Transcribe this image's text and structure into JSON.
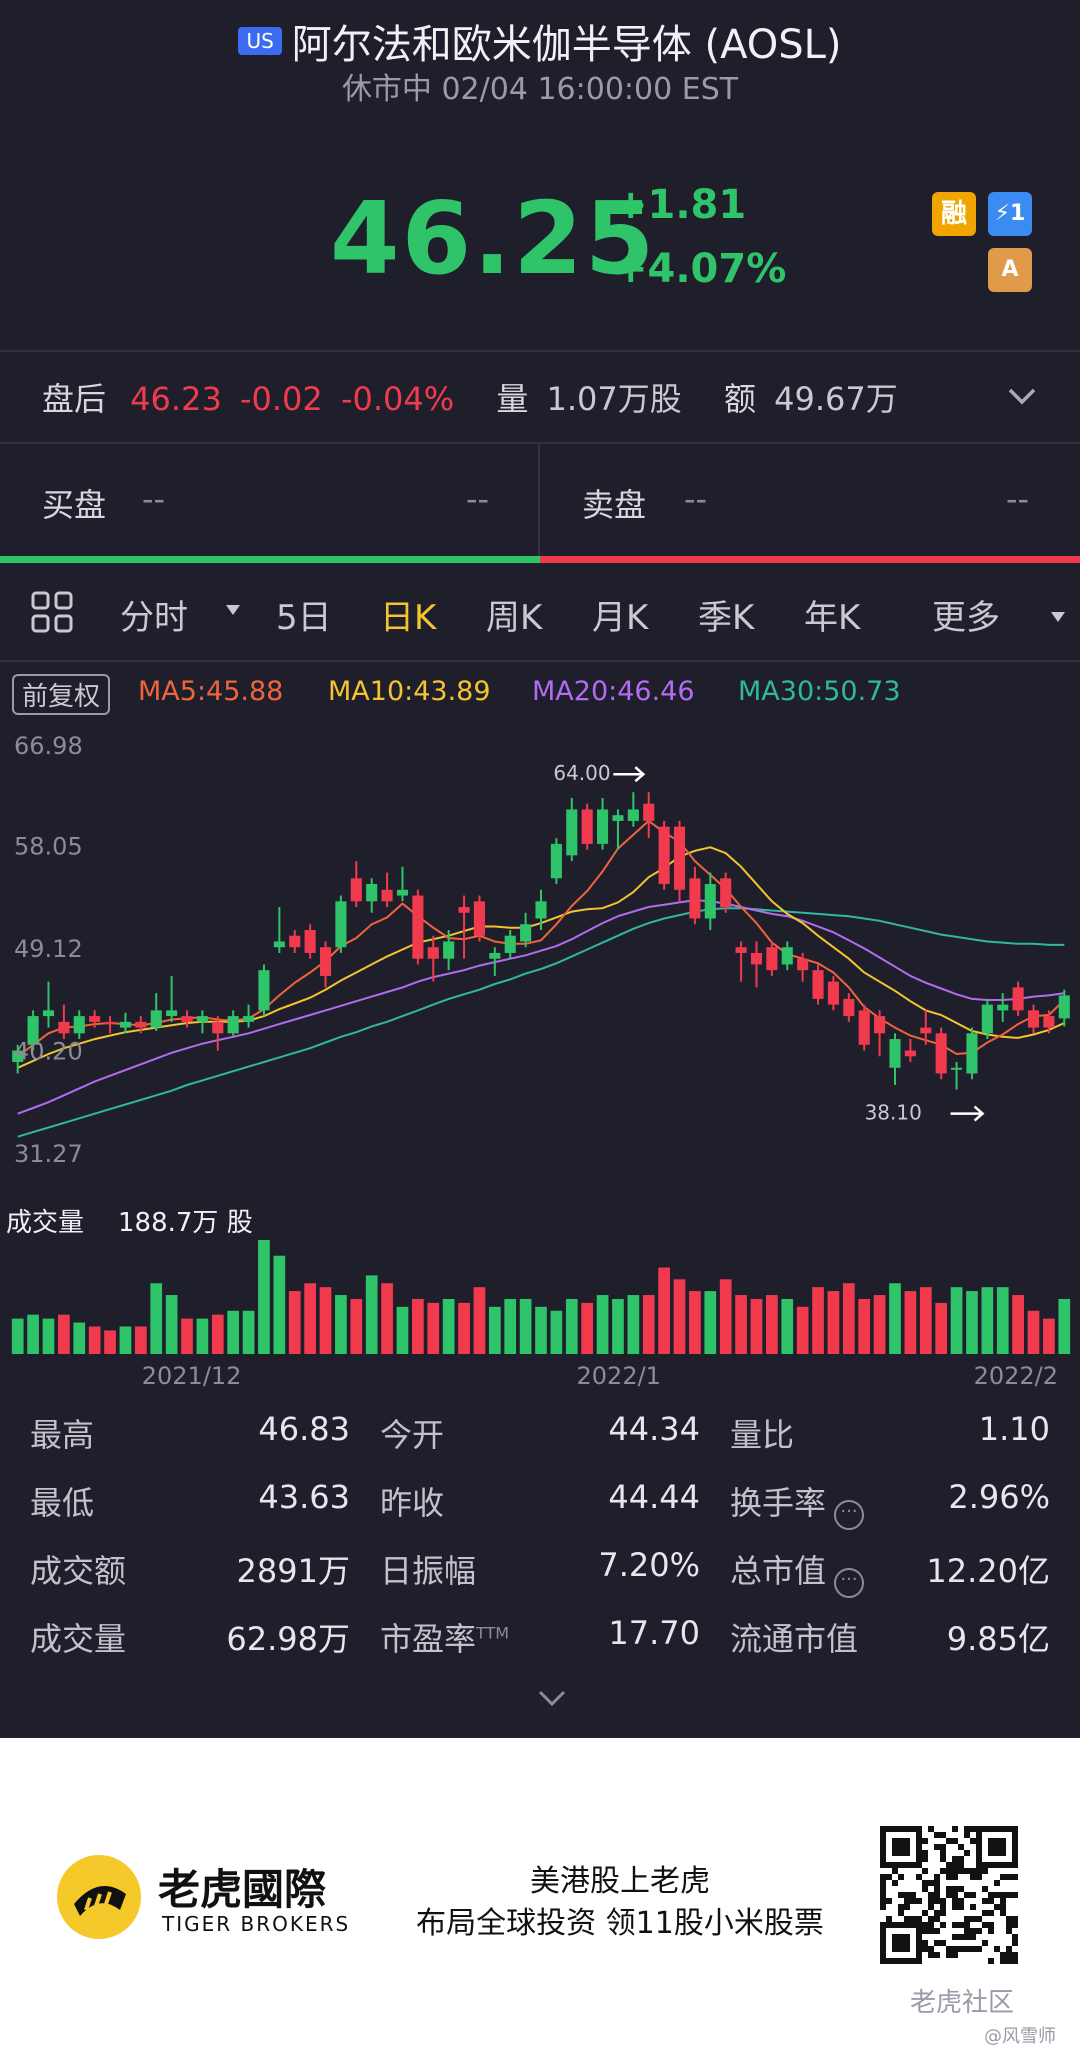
{
  "header": {
    "market_badge": "US",
    "title": "阿尔法和欧米伽半导体 (AOSL)",
    "status": "休市中 02/04 16:00:00 EST",
    "price": "46.25",
    "change": "+1.81",
    "change_pct": "+4.07%",
    "icons": [
      {
        "name": "margin-icon",
        "label": "融",
        "color": "#f0a500"
      },
      {
        "name": "lightning-icon",
        "label": "⚡1",
        "color": "#3a8cf2"
      },
      {
        "name": "stack-a-icon",
        "label": "A",
        "color": "#e09a4a"
      }
    ]
  },
  "after_hours": {
    "label": "盘后",
    "price": "46.23",
    "change": "-0.02",
    "change_pct": "-0.04%",
    "volume_label": "量",
    "volume": "1.07万股",
    "amount_label": "额",
    "amount": "49.67万"
  },
  "order_book": {
    "bid_label": "买盘",
    "bid_price": "--",
    "bid_qty": "--",
    "ask_label": "卖盘",
    "ask_price": "--",
    "ask_qty": "--"
  },
  "tabs": [
    {
      "label": "分时"
    },
    {
      "label": "5日"
    },
    {
      "label": "日K"
    },
    {
      "label": "周K"
    },
    {
      "label": "月K"
    },
    {
      "label": "季K"
    },
    {
      "label": "年K"
    },
    {
      "label": "更多"
    }
  ],
  "active_tab": "日K",
  "chart_meta": {
    "adjust_label": "前复权",
    "ma5": "MA5:45.88",
    "ma10": "MA10:43.89",
    "ma20": "MA20:46.46",
    "ma30": "MA30:50.73",
    "colors": {
      "up": "#2fc46a",
      "down": "#f23a4f",
      "ma5": "#f0643c",
      "ma10": "#f4c430",
      "ma20": "#b36bf0",
      "ma30": "#2fb8a0"
    },
    "y_ticks": [
      "66.98",
      "58.05",
      "49.12",
      "40.20",
      "31.27"
    ],
    "high_marker": "64.00",
    "low_marker": "38.10",
    "volume_label": "成交量",
    "volume_value": "188.7万 股",
    "x_ticks": [
      "2021/12",
      "2022/1",
      "2022/2"
    ]
  },
  "chart_data": {
    "type": "candlestick",
    "ylim": [
      31.27,
      66.98
    ],
    "candles": [
      [
        40.5,
        41.5,
        39.5,
        42.0,
        "up"
      ],
      [
        42.0,
        44.5,
        41.5,
        45.0,
        "up"
      ],
      [
        44.5,
        45.0,
        43.5,
        47.5,
        "up"
      ],
      [
        44.0,
        43.0,
        42.5,
        45.5,
        "down"
      ],
      [
        43.0,
        44.5,
        42.5,
        45.0,
        "up"
      ],
      [
        44.5,
        44.0,
        43.5,
        45.0,
        "down"
      ],
      [
        44.0,
        43.8,
        43.0,
        44.5,
        "down"
      ],
      [
        43.5,
        44.0,
        43.0,
        44.8,
        "up"
      ],
      [
        44.0,
        43.5,
        43.0,
        44.5,
        "down"
      ],
      [
        43.5,
        45.0,
        43.2,
        46.5,
        "up"
      ],
      [
        44.5,
        45.0,
        44.0,
        48.0,
        "up"
      ],
      [
        44.5,
        44.0,
        43.5,
        45.0,
        "down"
      ],
      [
        44.0,
        44.5,
        43.0,
        45.0,
        "up"
      ],
      [
        44.0,
        43.0,
        41.5,
        44.5,
        "down"
      ],
      [
        43.0,
        44.5,
        42.8,
        45.0,
        "up"
      ],
      [
        44.0,
        44.5,
        43.5,
        45.5,
        "up"
      ],
      [
        45.0,
        48.5,
        44.5,
        49.0,
        "up"
      ],
      [
        50.5,
        51.0,
        50.0,
        54.0,
        "up"
      ],
      [
        51.5,
        50.5,
        50.0,
        52.0,
        "down"
      ],
      [
        52.0,
        50.0,
        49.5,
        52.5,
        "down"
      ],
      [
        50.5,
        48.0,
        47.0,
        51.0,
        "down"
      ],
      [
        50.5,
        54.5,
        50.0,
        55.0,
        "up"
      ],
      [
        56.5,
        54.5,
        54.0,
        58.0,
        "down"
      ],
      [
        54.5,
        56.0,
        53.5,
        56.5,
        "up"
      ],
      [
        55.5,
        54.5,
        54.0,
        57.0,
        "down"
      ],
      [
        55.0,
        55.5,
        54.5,
        57.5,
        "up"
      ],
      [
        55.0,
        49.5,
        49.0,
        55.5,
        "down"
      ],
      [
        50.5,
        49.5,
        47.5,
        51.5,
        "down"
      ],
      [
        49.5,
        51.0,
        48.5,
        52.0,
        "up"
      ],
      [
        54.0,
        53.5,
        49.5,
        55.0,
        "down"
      ],
      [
        54.5,
        51.5,
        51.0,
        55.0,
        "down"
      ],
      [
        49.5,
        50.0,
        48.0,
        50.5,
        "up"
      ],
      [
        50.0,
        51.5,
        49.5,
        52.0,
        "up"
      ],
      [
        51.0,
        52.5,
        50.5,
        53.5,
        "up"
      ],
      [
        53.0,
        54.5,
        52.0,
        55.5,
        "up"
      ],
      [
        56.5,
        59.5,
        56.0,
        60.0,
        "up"
      ],
      [
        58.5,
        62.5,
        58.0,
        63.5,
        "up"
      ],
      [
        62.5,
        59.5,
        59.0,
        63.0,
        "down"
      ],
      [
        59.5,
        62.5,
        59.0,
        63.5,
        "up"
      ],
      [
        61.5,
        62.0,
        59.0,
        62.5,
        "up"
      ],
      [
        61.5,
        62.5,
        61.0,
        64.0,
        "up"
      ],
      [
        63.0,
        61.5,
        60.0,
        64.0,
        "down"
      ],
      [
        61.0,
        56.0,
        55.5,
        61.5,
        "down"
      ],
      [
        61.0,
        55.5,
        54.5,
        61.5,
        "down"
      ],
      [
        56.5,
        53.0,
        52.5,
        57.5,
        "down"
      ],
      [
        53.0,
        56.0,
        52.0,
        57.0,
        "up"
      ],
      [
        56.5,
        54.0,
        53.5,
        57.0,
        "down"
      ],
      [
        50.5,
        50.0,
        47.5,
        51.0,
        "down"
      ],
      [
        50.0,
        49.0,
        47.0,
        51.0,
        "down"
      ],
      [
        50.5,
        48.5,
        48.0,
        51.0,
        "down"
      ],
      [
        49.0,
        50.5,
        48.5,
        51.0,
        "up"
      ],
      [
        49.5,
        48.5,
        47.5,
        50.0,
        "down"
      ],
      [
        48.5,
        46.0,
        45.5,
        49.0,
        "down"
      ],
      [
        47.5,
        45.5,
        45.0,
        48.0,
        "down"
      ],
      [
        46.0,
        44.5,
        44.0,
        46.5,
        "down"
      ],
      [
        45.0,
        42.0,
        41.5,
        45.5,
        "down"
      ],
      [
        44.5,
        43.0,
        41.0,
        45.0,
        "down"
      ],
      [
        40.0,
        42.5,
        38.5,
        43.0,
        "up"
      ],
      [
        41.5,
        41.0,
        40.5,
        42.5,
        "down"
      ],
      [
        43.5,
        43.0,
        42.0,
        45.0,
        "down"
      ],
      [
        43.0,
        39.5,
        39.0,
        43.5,
        "down"
      ],
      [
        40.0,
        40.0,
        38.1,
        40.5,
        "up"
      ],
      [
        39.5,
        43.0,
        39.0,
        43.5,
        "up"
      ],
      [
        43.0,
        45.5,
        42.5,
        46.0,
        "up"
      ],
      [
        45.0,
        45.5,
        44.0,
        46.5,
        "up"
      ],
      [
        47.0,
        45.0,
        44.5,
        47.5,
        "down"
      ],
      [
        45.0,
        43.5,
        43.0,
        45.5,
        "down"
      ],
      [
        44.5,
        43.5,
        43.0,
        45.0,
        "down"
      ],
      [
        44.3,
        46.3,
        43.6,
        46.8,
        "up"
      ]
    ],
    "ma5": [
      41.0,
      42.0,
      43.0,
      43.5,
      43.6,
      43.8,
      43.9,
      43.8,
      43.7,
      43.9,
      44.2,
      44.3,
      44.4,
      44.2,
      44.1,
      44.3,
      45.1,
      46.3,
      47.4,
      48.3,
      49.3,
      50.6,
      51.3,
      52.5,
      53.1,
      54.3,
      53.2,
      52.2,
      51.3,
      51.2,
      51.5,
      51.0,
      50.8,
      50.8,
      51.1,
      52.5,
      54.1,
      55.4,
      57.1,
      59.1,
      60.3,
      61.5,
      60.5,
      59.7,
      58.0,
      56.8,
      55.6,
      54.0,
      52.6,
      50.9,
      49.9,
      49.5,
      49.1,
      48.3,
      47.0,
      45.3,
      44.3,
      43.5,
      42.8,
      42.4,
      42.0,
      41.2,
      41.3,
      42.2,
      42.9,
      43.8,
      44.5,
      44.6,
      45.9
    ],
    "ma10": [
      40.0,
      40.6,
      41.2,
      41.7,
      42.1,
      42.5,
      42.8,
      43.1,
      43.3,
      43.5,
      43.7,
      43.9,
      44.0,
      44.0,
      44.0,
      44.1,
      44.5,
      45.1,
      45.6,
      46.1,
      46.8,
      47.6,
      48.3,
      49.0,
      49.7,
      50.3,
      50.9,
      51.2,
      51.5,
      51.9,
      52.3,
      52.3,
      52.2,
      52.2,
      52.6,
      53.1,
      53.6,
      53.8,
      53.9,
      54.4,
      55.3,
      56.6,
      57.4,
      58.4,
      58.9,
      59.2,
      58.7,
      57.5,
      56.0,
      54.5,
      53.4,
      52.6,
      51.5,
      50.5,
      49.5,
      48.3,
      47.5,
      46.7,
      45.8,
      45.0,
      44.6,
      43.9,
      43.2,
      42.9,
      42.7,
      42.6,
      42.9,
      43.3,
      43.9
    ],
    "ma20": [
      36.0,
      36.5,
      37.0,
      37.6,
      38.2,
      38.8,
      39.3,
      39.8,
      40.3,
      40.8,
      41.3,
      41.7,
      42.1,
      42.4,
      42.7,
      43.0,
      43.4,
      43.8,
      44.2,
      44.6,
      45.0,
      45.4,
      45.8,
      46.2,
      46.6,
      47.0,
      47.5,
      47.9,
      48.2,
      48.5,
      48.9,
      49.2,
      49.5,
      49.8,
      50.2,
      50.6,
      51.2,
      51.9,
      52.6,
      53.2,
      53.6,
      54.0,
      54.2,
      54.4,
      54.6,
      54.5,
      54.3,
      54.0,
      53.7,
      53.4,
      53.2,
      52.8,
      52.3,
      51.8,
      51.1,
      50.4,
      49.6,
      48.8,
      48.0,
      47.4,
      46.9,
      46.4,
      46.0,
      45.9,
      45.9,
      46.0,
      46.2,
      46.3,
      46.5
    ],
    "ma30": [
      34.0,
      34.4,
      34.8,
      35.2,
      35.6,
      36.0,
      36.4,
      36.8,
      37.2,
      37.6,
      38.0,
      38.5,
      38.9,
      39.3,
      39.7,
      40.1,
      40.5,
      40.9,
      41.3,
      41.7,
      42.2,
      42.7,
      43.1,
      43.6,
      44.0,
      44.5,
      45.0,
      45.5,
      46.0,
      46.4,
      46.8,
      47.3,
      47.7,
      48.2,
      48.6,
      49.1,
      49.7,
      50.3,
      50.9,
      51.5,
      52.1,
      52.6,
      53.0,
      53.3,
      53.6,
      53.8,
      53.9,
      53.9,
      53.8,
      53.7,
      53.6,
      53.5,
      53.4,
      53.3,
      53.2,
      53.0,
      52.8,
      52.5,
      52.2,
      51.9,
      51.6,
      51.4,
      51.2,
      51.0,
      50.9,
      50.8,
      50.8,
      50.7,
      50.7
    ],
    "volume": [
      18,
      20,
      18,
      20,
      16,
      14,
      12,
      14,
      14,
      36,
      30,
      18,
      18,
      20,
      22,
      22,
      58,
      50,
      32,
      36,
      34,
      30,
      28,
      40,
      36,
      24,
      28,
      26,
      28,
      26,
      34,
      24,
      28,
      28,
      24,
      22,
      28,
      26,
      30,
      28,
      30,
      30,
      44,
      38,
      32,
      32,
      38,
      30,
      28,
      30,
      28,
      24,
      34,
      32,
      36,
      28,
      30,
      36,
      32,
      34,
      26,
      34,
      32,
      34,
      34,
      30,
      22,
      18,
      28
    ],
    "x_ticks": [
      "2021/12",
      "2022/1",
      "2022/2"
    ],
    "volume_total": "188.7万 股"
  },
  "stats": [
    {
      "label": "最高",
      "value": "46.83"
    },
    {
      "label": "今开",
      "value": "44.34"
    },
    {
      "label": "量比",
      "value": "1.10"
    },
    {
      "label": "最低",
      "value": "43.63"
    },
    {
      "label": "昨收",
      "value": "44.44"
    },
    {
      "label": "换手率",
      "value": "2.96%"
    },
    {
      "label": "成交额",
      "value": "2891万"
    },
    {
      "label": "日振幅",
      "value": "7.20%"
    },
    {
      "label": "总市值",
      "value": "12.20亿"
    },
    {
      "label": "成交量",
      "value": "62.98万"
    },
    {
      "label": "市盈率TTM",
      "value": "17.70"
    },
    {
      "label": "流通市值",
      "value": "9.85亿"
    }
  ],
  "footer": {
    "brand_cn": "老虎國際",
    "brand_en": "TIGER BROKERS",
    "slogan1": "美港股上老虎",
    "slogan2": "布局全球投资 领11股小米股票",
    "community": "老虎社区",
    "author": "@风雪师"
  }
}
